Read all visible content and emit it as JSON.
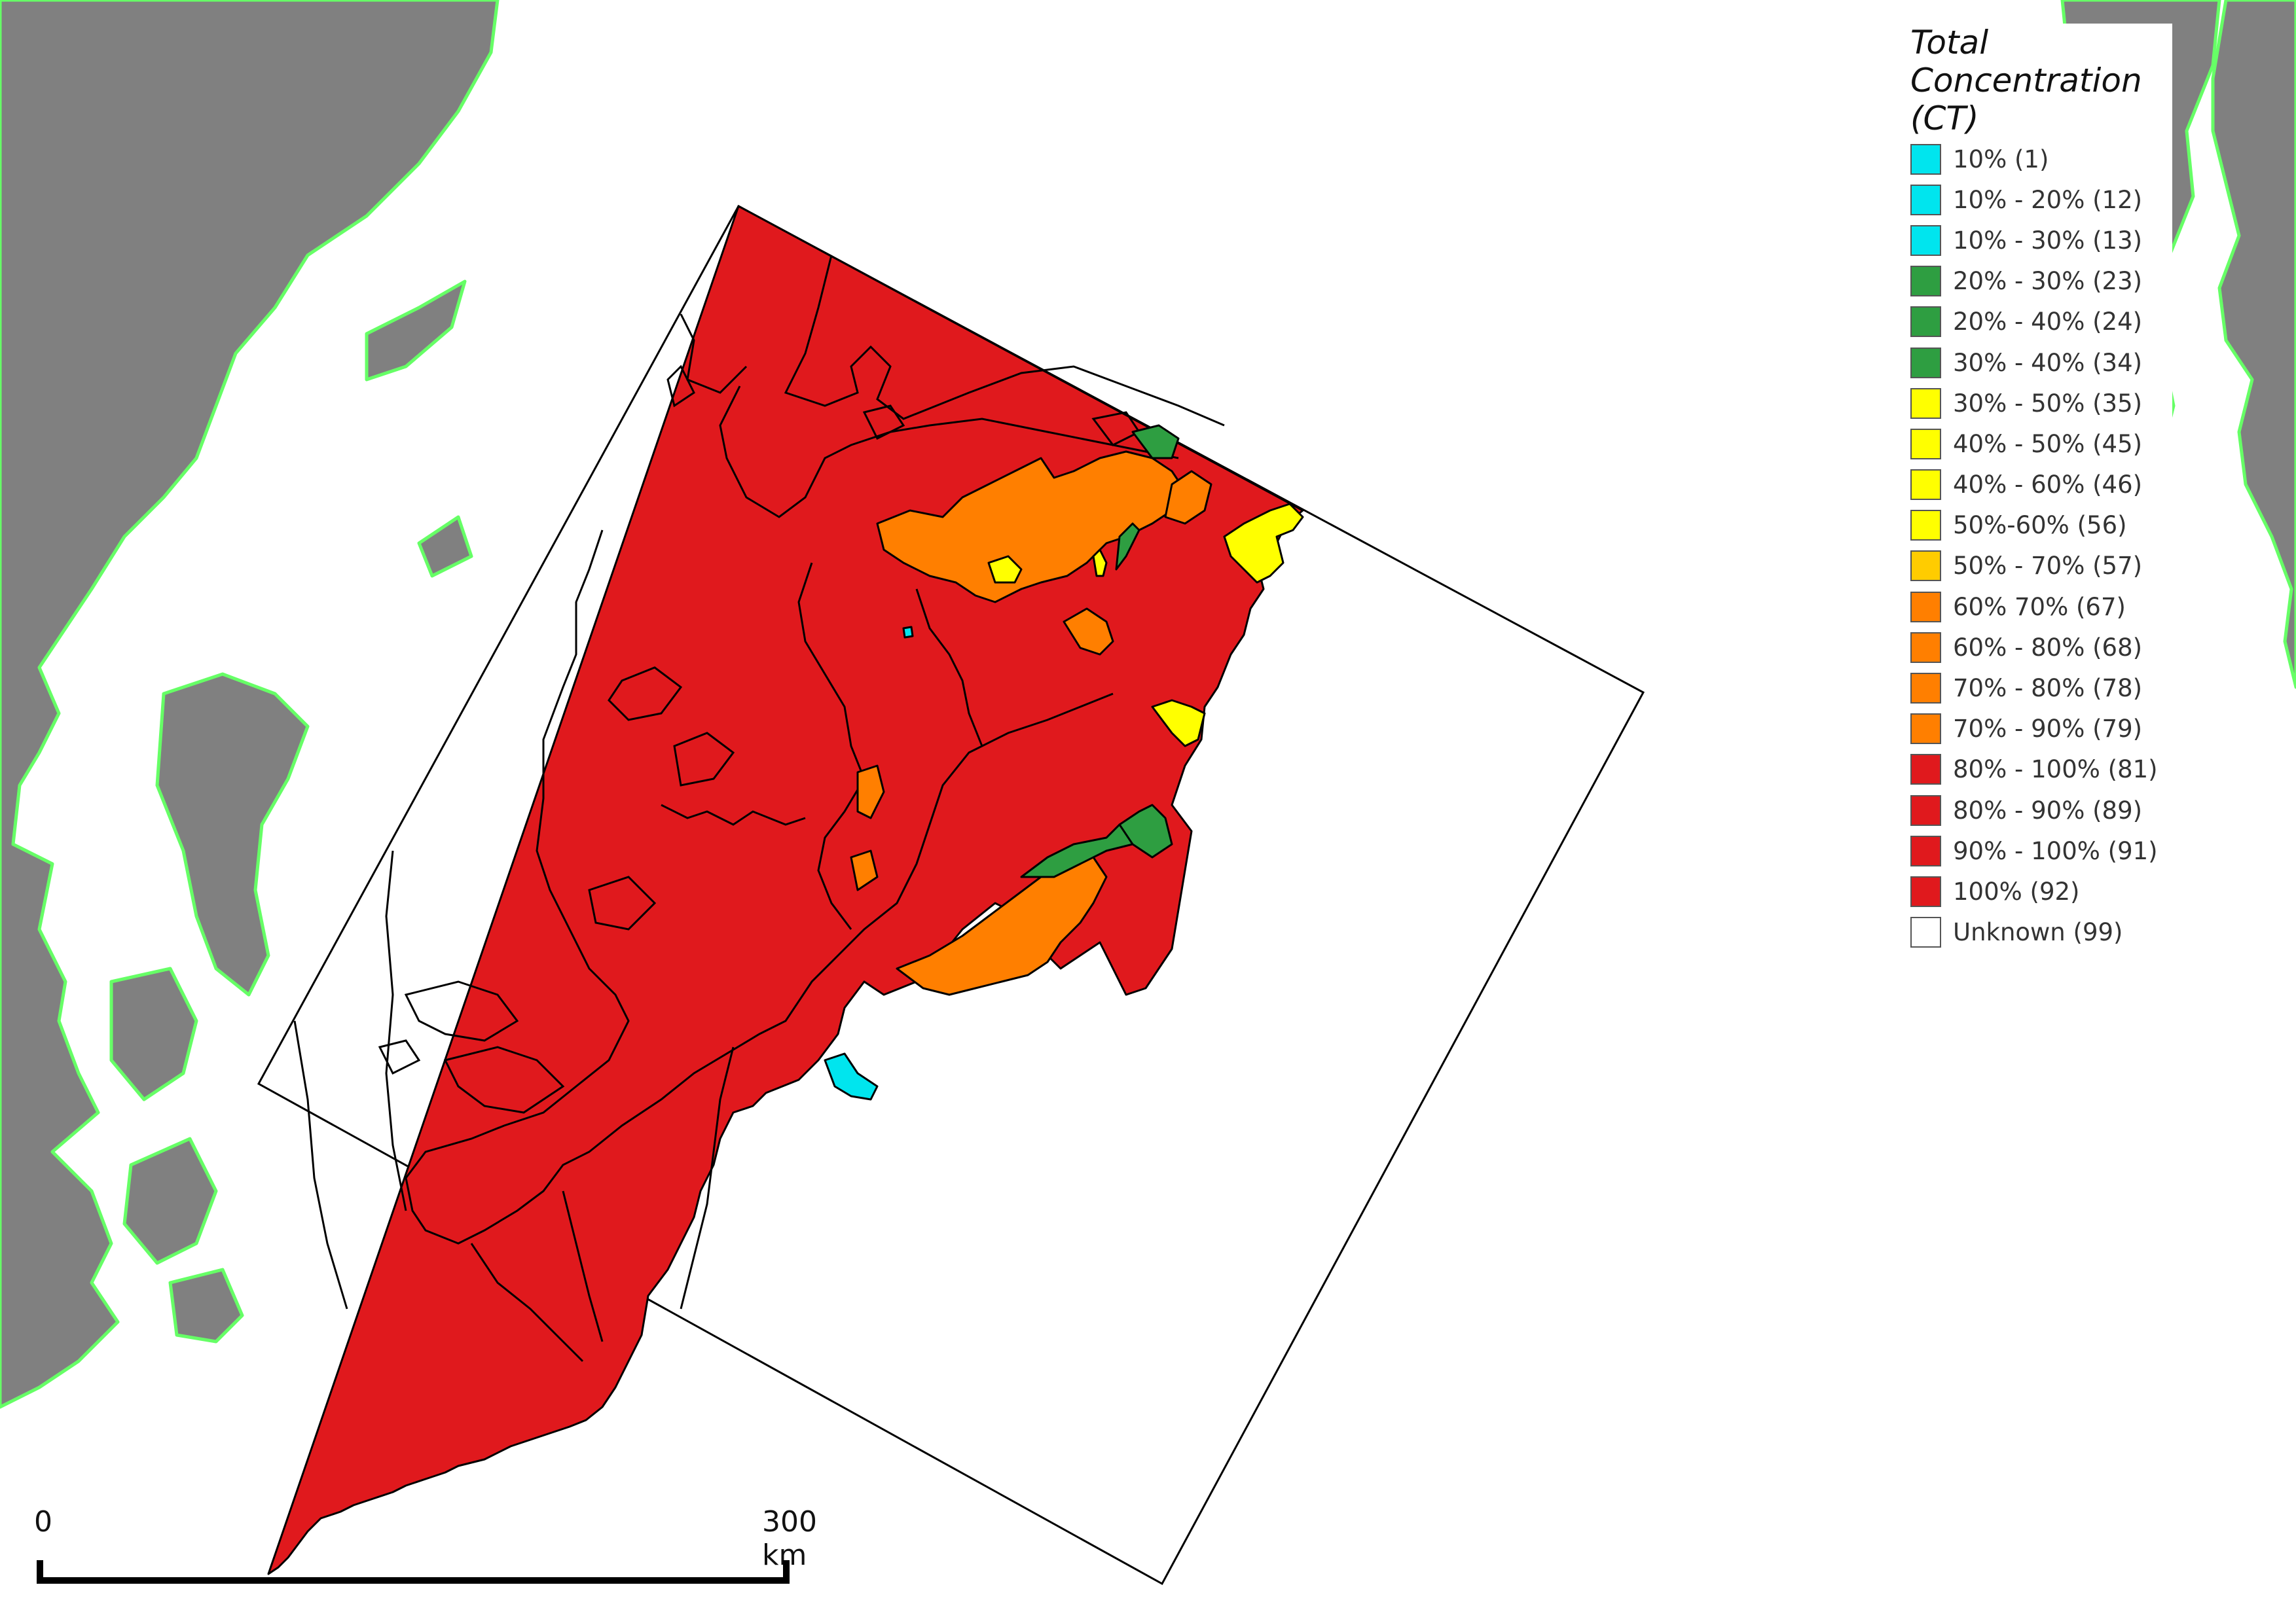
{
  "map": {
    "land_color": "#808080",
    "coast_color": "#66ff66",
    "water_color": "#ffffff",
    "ice_base_color": "#e0191d",
    "outline_color": "#000000"
  },
  "legend": {
    "title": "Total Concentration\n(CT)",
    "items": [
      {
        "label": "10% (1)",
        "color": "#00e5ee"
      },
      {
        "label": "10% - 20% (12)",
        "color": "#00e5ee"
      },
      {
        "label": "10% - 30% (13)",
        "color": "#00e5ee"
      },
      {
        "label": "20% - 30% (23)",
        "color": "#2e9e41"
      },
      {
        "label": "20% - 40% (24)",
        "color": "#2e9e41"
      },
      {
        "label": "30% - 40% (34)",
        "color": "#2e9e41"
      },
      {
        "label": "30% - 50% (35)",
        "color": "#ffff00"
      },
      {
        "label": "40% - 50% (45)",
        "color": "#ffff00"
      },
      {
        "label": "40% - 60% (46)",
        "color": "#ffff00"
      },
      {
        "label": "50%-60% (56)",
        "color": "#ffff00"
      },
      {
        "label": "50% - 70% (57)",
        "color": "#ffcc00"
      },
      {
        "label": "60% 70% (67)",
        "color": "#ff7f00"
      },
      {
        "label": "60% - 80% (68)",
        "color": "#ff7f00"
      },
      {
        "label": "70% - 80% (78)",
        "color": "#ff7f00"
      },
      {
        "label": "70% - 90% (79)",
        "color": "#ff7f00"
      },
      {
        "label": "80% - 100% (81)",
        "color": "#e0191d"
      },
      {
        "label": "80% - 90% (89)",
        "color": "#e0191d"
      },
      {
        "label": "90% - 100% (91)",
        "color": "#e0191d"
      },
      {
        "label": "100% (92)",
        "color": "#e0191d"
      },
      {
        "label": "Unknown (99)",
        "color": "#ffffff"
      }
    ]
  },
  "scale": {
    "start_label": "0",
    "end_label": "300 km"
  }
}
